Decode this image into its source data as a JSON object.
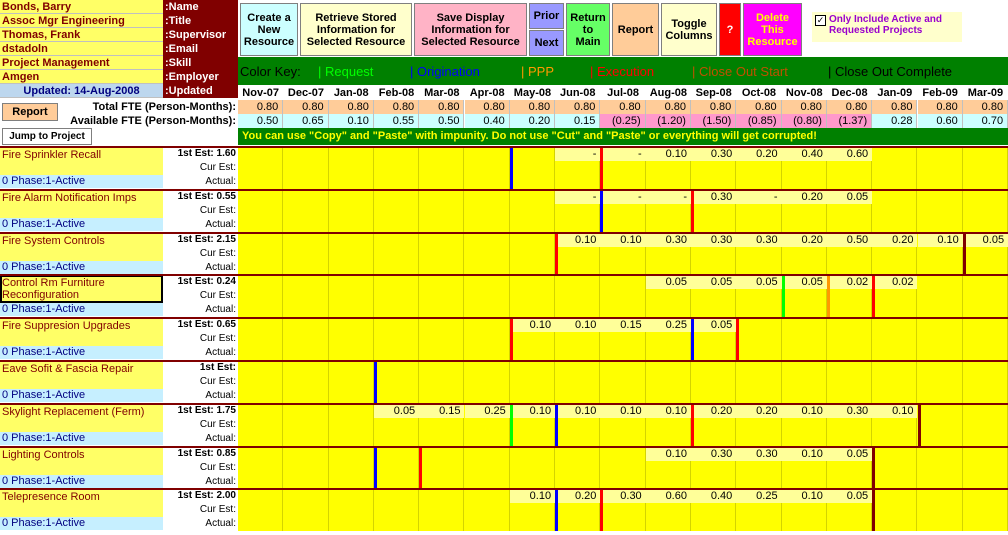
{
  "header": {
    "rows": [
      {
        "value": "Bonds, Barry",
        "label": ":Name"
      },
      {
        "value": "Assoc Mgr Engineering",
        "label": ":Title"
      },
      {
        "value": "Thomas, Frank",
        "label": ":Supervisor"
      },
      {
        "value": "dstadoln",
        "label": ":Email"
      },
      {
        "value": "Project Management",
        "label": ":Skill"
      },
      {
        "value": "Amgen",
        "label": ":Employer"
      },
      {
        "value": "Updated: 14-Aug-2008",
        "label": ":Updated"
      }
    ]
  },
  "toolbar": {
    "create": "Create a\nNew\nResource",
    "retrieve": "Retrieve Stored\nInformation for\nSelected Resource",
    "save": "Save Display\nInformation for\nSelected Resource",
    "prior": "Prior",
    "next": "Next",
    "return": "Return\nto\nMain",
    "report": "Report",
    "toggle": "Toggle\nColumns",
    "help": "?",
    "delete": "Delete\nThis\nResource",
    "only_active_label": "Only Include Active and Requested Projects",
    "only_active_checked": true
  },
  "color_key": {
    "title": "Color Key:",
    "items": [
      {
        "label": "| Request",
        "color": "#00ff00"
      },
      {
        "label": "| Origination",
        "color": "#0000ff"
      },
      {
        "label": "| PPP",
        "color": "#ff9900"
      },
      {
        "label": "| Execution",
        "color": "#ff0000"
      },
      {
        "label": "| Close Out Start",
        "color": "#c05000"
      },
      {
        "label": "| Close Out Complete",
        "color": "#000000"
      }
    ]
  },
  "months": [
    "Nov-07",
    "Dec-07",
    "Jan-08",
    "Feb-08",
    "Mar-08",
    "Apr-08",
    "May-08",
    "Jun-08",
    "Jul-08",
    "Aug-08",
    "Sep-08",
    "Oct-08",
    "Nov-08",
    "Dec-08",
    "Jan-09",
    "Feb-09",
    "Mar-09"
  ],
  "report_button": "Report",
  "jump_button": "Jump to Project",
  "total_fte_label": "Total FTE (Person-Months):",
  "available_fte_label": "Available FTE (Person-Months):",
  "total_fte": [
    "0.80",
    "0.80",
    "0.80",
    "0.80",
    "0.80",
    "0.80",
    "0.80",
    "0.80",
    "0.80",
    "0.80",
    "0.80",
    "0.80",
    "0.80",
    "0.80",
    "0.80",
    "0.80",
    "0.80"
  ],
  "available_fte": [
    "0.50",
    "0.65",
    "0.10",
    "0.55",
    "0.50",
    "0.40",
    "0.20",
    "0.15",
    "(0.25)",
    "(1.20)",
    "(1.50)",
    "(0.85)",
    "(0.80)",
    "(1.37)",
    "0.28",
    "0.60",
    "0.70"
  ],
  "warning": "You can use \"Copy\" and \"Paste\" with impunity.  Do not use \"Cut\" and \"Paste\" or everything will get corrupted!",
  "est_labels": {
    "first": "1st Est:",
    "cur": "Cur Est:",
    "actual": "Actual:"
  },
  "projects": [
    {
      "name": "Fire Sprinkler Recall",
      "phase": "0   Phase:1-Active",
      "first_est": "1st Est: 1.60",
      "values": [
        "",
        "",
        "",
        "",
        "",
        "",
        "",
        "-",
        "-",
        "0.10",
        "0.30",
        "0.20",
        "0.40",
        "0.60",
        "",
        "",
        ""
      ],
      "lines": [
        {
          "col": 6,
          "color": "#0000ff"
        },
        {
          "col": 8,
          "color": "#ff0000"
        }
      ]
    },
    {
      "name": "Fire Alarm Notification Imps",
      "phase": "0   Phase:1-Active",
      "first_est": "1st Est: 0.55",
      "values": [
        "",
        "",
        "",
        "",
        "",
        "",
        "",
        "-",
        "-",
        "-",
        "0.30",
        "-",
        "0.20",
        "0.05",
        "",
        "",
        ""
      ],
      "lines": [
        {
          "col": 8,
          "color": "#0000ff"
        },
        {
          "col": 10,
          "color": "#ff0000"
        }
      ]
    },
    {
      "name": "Fire System Controls",
      "phase": "0   Phase:1-Active",
      "first_est": "1st Est: 2.15",
      "values": [
        "",
        "",
        "",
        "",
        "",
        "",
        "",
        "0.10",
        "0.10",
        "0.30",
        "0.30",
        "0.30",
        "0.20",
        "0.50",
        "0.20",
        "0.10",
        "0.05"
      ],
      "lines": [
        {
          "col": 7,
          "color": "#ff0000"
        },
        {
          "col": 16,
          "color": "#800000"
        }
      ]
    },
    {
      "name": "Control Rm Furniture Reconfiguration",
      "phase": "0   Phase:1-Active",
      "first_est": "1st Est: 0.24",
      "values": [
        "",
        "",
        "",
        "",
        "",
        "",
        "",
        "",
        "",
        "0.05",
        "0.05",
        "0.05",
        "0.05",
        "0.02",
        "0.02",
        "",
        ""
      ],
      "lines": [
        {
          "col": 12,
          "color": "#00ff00"
        },
        {
          "col": 13,
          "color": "#ff9900"
        },
        {
          "col": 14,
          "color": "#ff0000"
        }
      ]
    },
    {
      "name": "Fire Suppresion Upgrades",
      "phase": "0   Phase:1-Active",
      "first_est": "1st Est: 0.65",
      "values": [
        "",
        "",
        "",
        "",
        "",
        "",
        "0.10",
        "0.10",
        "0.15",
        "0.25",
        "0.05",
        "",
        "",
        "",
        "",
        "",
        ""
      ],
      "lines": [
        {
          "col": 6,
          "color": "#ff0000"
        },
        {
          "col": 10,
          "color": "#0000ff"
        },
        {
          "col": 11,
          "color": "#ff0000"
        }
      ]
    },
    {
      "name": "Eave Sofit & Fascia Repair",
      "phase": "0   Phase:1-Active",
      "first_est": "1st Est:",
      "values": [
        "",
        "",
        "",
        "",
        "",
        "",
        "",
        "",
        "",
        "",
        "",
        "",
        "",
        "",
        "",
        "",
        ""
      ],
      "lines": [
        {
          "col": 3,
          "color": "#0000ff"
        }
      ]
    },
    {
      "name": "Skylight Replacement (Ferm)",
      "phase": "0   Phase:1-Active",
      "first_est": "1st Est: 1.75",
      "values": [
        "",
        "",
        "",
        "0.05",
        "0.15",
        "0.25",
        "0.10",
        "0.10",
        "0.10",
        "0.10",
        "0.20",
        "0.20",
        "0.10",
        "0.30",
        "0.10",
        "",
        ""
      ],
      "lines": [
        {
          "col": 6,
          "color": "#00ff00"
        },
        {
          "col": 7,
          "color": "#0000ff"
        },
        {
          "col": 10,
          "color": "#ff0000"
        },
        {
          "col": 15,
          "color": "#800000"
        }
      ]
    },
    {
      "name": "Lighting Controls",
      "phase": "0   Phase:1-Active",
      "first_est": "1st Est: 0.85",
      "values": [
        "",
        "",
        "",
        "",
        "",
        "",
        "",
        "",
        "",
        "0.10",
        "0.30",
        "0.30",
        "0.10",
        "0.05",
        "",
        "",
        ""
      ],
      "lines": [
        {
          "col": 3,
          "color": "#0000ff"
        },
        {
          "col": 4,
          "color": "#ff0000"
        },
        {
          "col": 14,
          "color": "#800000"
        }
      ]
    },
    {
      "name": "Telepresence Room",
      "phase": "0   Phase:1-Active",
      "first_est": "1st Est: 2.00",
      "values": [
        "",
        "",
        "",
        "",
        "",
        "",
        "0.10",
        "0.20",
        "0.30",
        "0.60",
        "0.40",
        "0.25",
        "0.10",
        "0.05",
        "",
        "",
        ""
      ],
      "lines": [
        {
          "col": 7,
          "color": "#0000ff"
        },
        {
          "col": 8,
          "color": "#ff0000"
        },
        {
          "col": 14,
          "color": "#800000"
        }
      ]
    }
  ]
}
